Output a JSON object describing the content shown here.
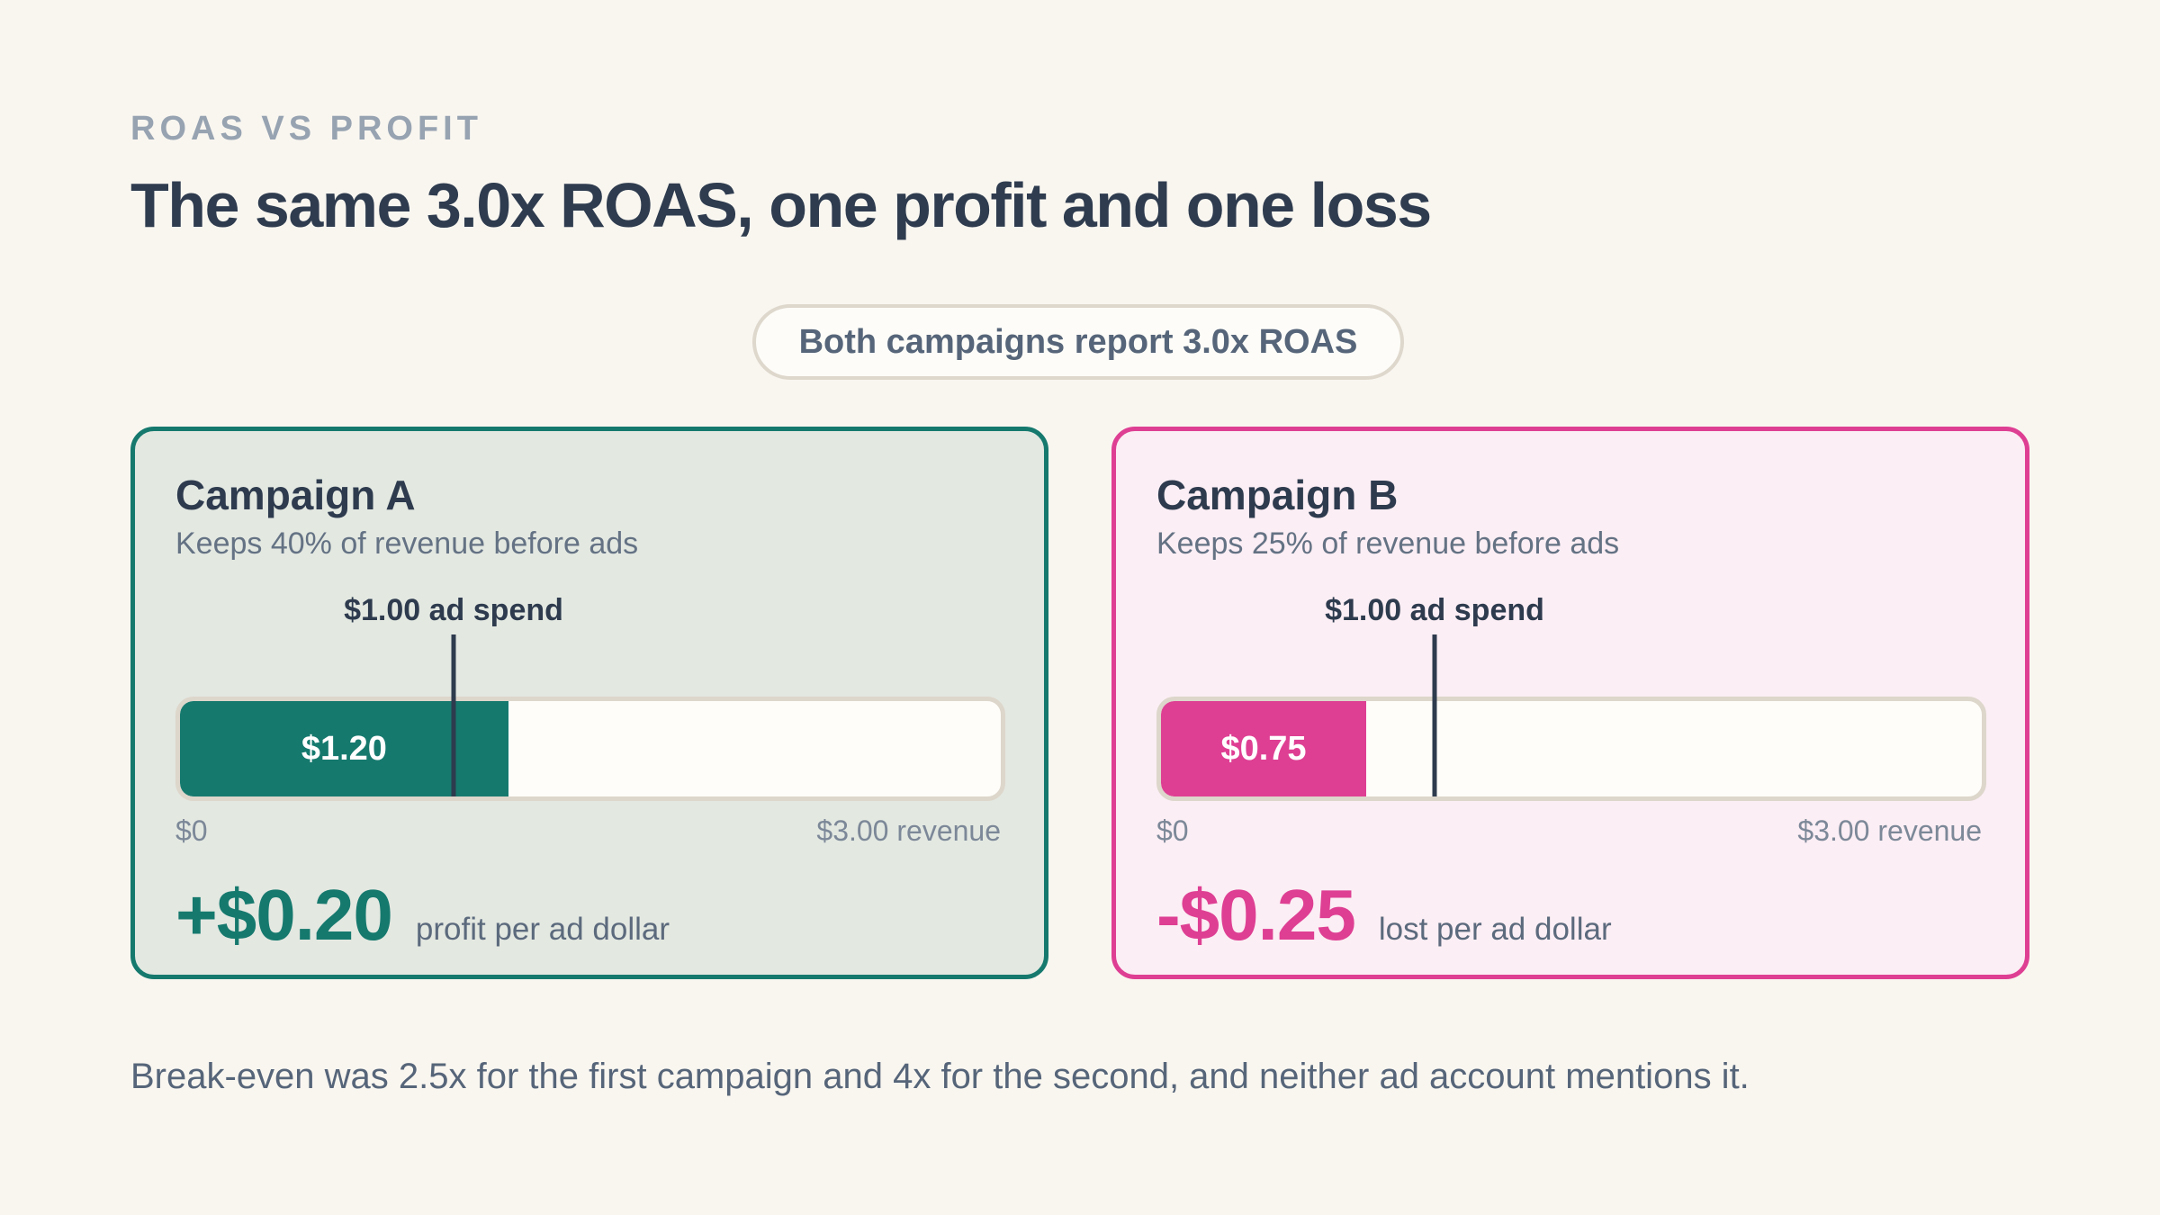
{
  "eyebrow": "ROAS VS PROFIT",
  "title": "The same 3.0x ROAS, one profit and one loss",
  "pill": "Both campaigns report 3.0x ROAS",
  "colors": {
    "background": "#f9f6f0",
    "campaign_a": "#16796e",
    "campaign_b": "#de3f93",
    "text": "#2e3b4e"
  },
  "campaigns": [
    {
      "name": "Campaign A",
      "subtitle": "Keeps 40% of revenue before ads",
      "spend_label": "$1.00 ad spend",
      "bar_label": "$1.20",
      "axis_min": "$0",
      "axis_max": "$3.00 revenue",
      "result_value": "+$0.20",
      "result_label": "profit per ad dollar"
    },
    {
      "name": "Campaign B",
      "subtitle": "Keeps 25% of revenue before ads",
      "spend_label": "$1.00 ad spend",
      "bar_label": "$0.75",
      "axis_min": "$0",
      "axis_max": "$3.00 revenue",
      "result_value": "-$0.25",
      "result_label": "lost per ad dollar"
    }
  ],
  "chart_data": {
    "type": "bar",
    "categories": [
      "Campaign A",
      "Campaign B"
    ],
    "values": [
      1.2,
      0.75
    ],
    "reference_line": 1.0,
    "xlim": [
      0,
      3.0
    ]
  },
  "footnote": "Break-even was 2.5x for the first campaign and 4x for the second, and neither ad account mentions it."
}
